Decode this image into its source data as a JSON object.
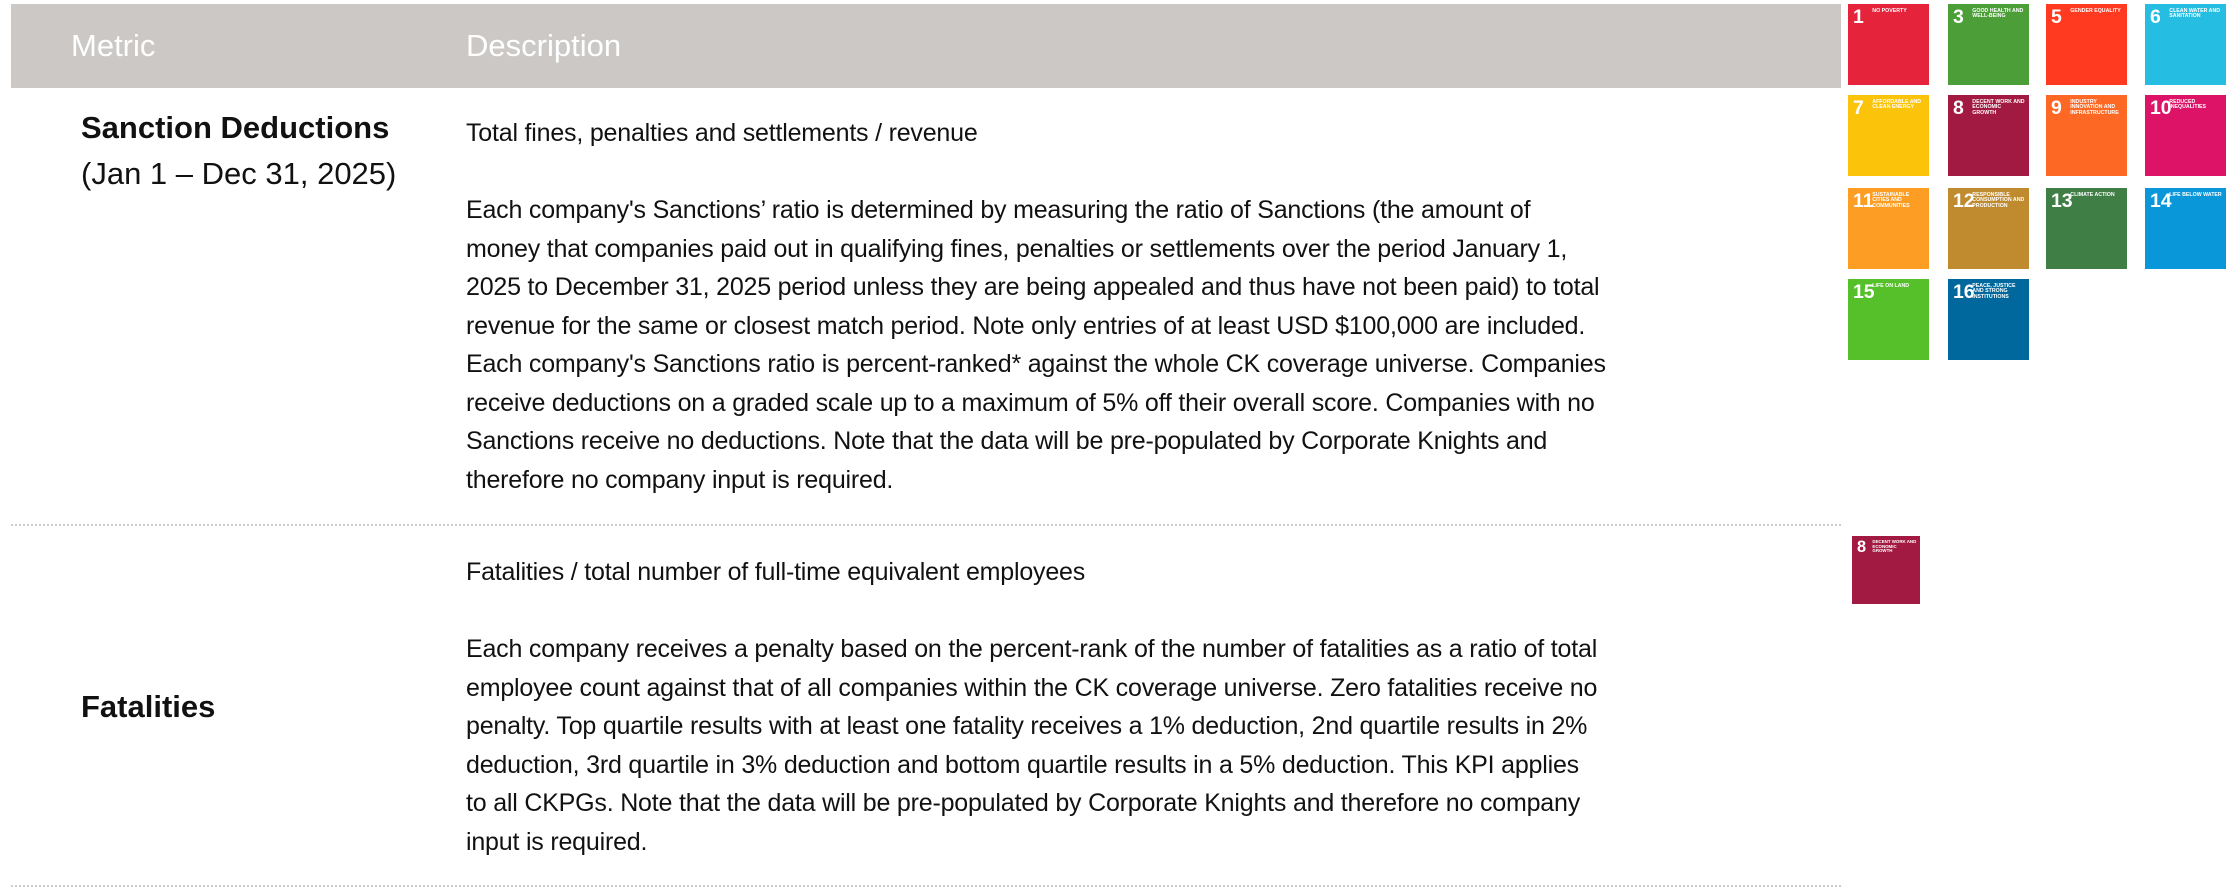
{
  "header": {
    "metric": "Metric",
    "description": "Description"
  },
  "rows": [
    {
      "metric": "Sanction Deductions",
      "period": "(Jan 1 – Dec 31, 2025)",
      "formula": "Total fines, penalties and settlements / revenue",
      "lines": [
        "Each company's Sanctions’ ratio is determined by measuring the ratio of Sanctions (the amount of",
        "money that companies paid out in qualifying fines, penalties or settlements over the period January 1,",
        "2025 to December 31, 2025 period unless they are being appealed and thus have not been paid) to total",
        "revenue for the same or closest match period. Note only entries of at least USD $100,000 are included.",
        "Each company's Sanctions ratio is percent-ranked* against the whole CK coverage universe. Companies",
        "receive deductions on a graded scale up to a maximum of 5% off their overall score. Companies with no",
        "Sanctions receive no deductions. Note that the data will be pre-populated by Corporate Knights and",
        "therefore no company input is required."
      ]
    },
    {
      "metric": "Fatalities",
      "formula": "Fatalities / total number of full-time equivalent employees",
      "lines": [
        "Each company receives a penalty based on the percent-rank of the number of fatalities as a ratio of total",
        "employee count against that of all companies within the CK coverage universe. Zero fatalities receive no",
        "penalty. Top quartile results with at least one fatality receives a 1% deduction, 2nd quartile results in 2%",
        "deduction, 3rd quartile in 3% deduction and bottom quartile results in a 5% deduction. This KPI applies",
        "to all CKPGs. Note that the data will be pre-populated by Corporate Knights and therefore no company",
        "input is required."
      ]
    }
  ],
  "icons": [
    {
      "number": "1",
      "label": "NO POVERTY",
      "color": "#e5243b"
    },
    {
      "number": "3",
      "label": "GOOD HEALTH AND WELL-BEING",
      "color": "#4c9f38"
    },
    {
      "number": "5",
      "label": "GENDER EQUALITY",
      "color": "#ff3a21"
    },
    {
      "number": "6",
      "label": "CLEAN WATER AND SANITATION",
      "color": "#26bde2"
    },
    {
      "number": "7",
      "label": "AFFORDABLE AND CLEAN ENERGY",
      "color": "#fcc30b"
    },
    {
      "number": "8",
      "label": "DECENT WORK AND ECONOMIC GROWTH",
      "color": "#a21942"
    },
    {
      "number": "9",
      "label": "INDUSTRY INNOVATION AND INFRASTRUCTURE",
      "color": "#fd6925"
    },
    {
      "number": "10",
      "label": "REDUCED INEQUALITIES",
      "color": "#dd1367"
    },
    {
      "number": "11",
      "label": "SUSTAINABLE CITIES AND COMMUNITIES",
      "color": "#fd9d24"
    },
    {
      "number": "12",
      "label": "RESPONSIBLE CONSUMPTION AND PRODUCTION",
      "color": "#bf8b2e"
    },
    {
      "number": "13",
      "label": "CLIMATE ACTION",
      "color": "#3f7e44"
    },
    {
      "number": "14",
      "label": "LIFE BELOW WATER",
      "color": "#0a97d9"
    },
    {
      "number": "15",
      "label": "LIFE ON LAND",
      "color": "#56c02b"
    },
    {
      "number": "16",
      "label": "PEACE, JUSTICE AND STRONG INSTITUTIONS",
      "color": "#00689d"
    }
  ],
  "fatality_icon": {
    "number": "8",
    "label": "DECENT WORK AND ECONOMIC GROWTH",
    "color": "#a21942"
  }
}
